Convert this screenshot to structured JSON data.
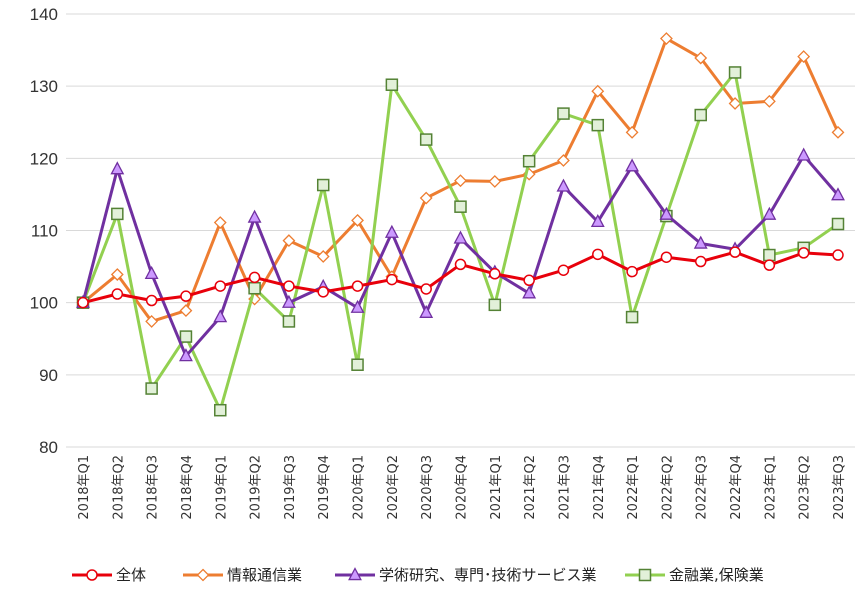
{
  "chart_data": {
    "type": "line",
    "title": "",
    "xlabel": "",
    "ylabel": "",
    "ylim": [
      80,
      140
    ],
    "yticks": [
      80,
      90,
      100,
      110,
      120,
      130,
      140
    ],
    "grid": true,
    "legend_position": "bottom",
    "categories": [
      "2018年Q1",
      "2018年Q2",
      "2018年Q3",
      "2018年Q4",
      "2019年Q1",
      "2019年Q2",
      "2019年Q3",
      "2019年Q4",
      "2020年Q1",
      "2020年Q2",
      "2020年Q3",
      "2020年Q4",
      "2021年Q1",
      "2021年Q2",
      "2021年Q3",
      "2021年Q4",
      "2022年Q1",
      "2022年Q2",
      "2022年Q3",
      "2022年Q4",
      "2023年Q1",
      "2023年Q2",
      "2023年Q3"
    ],
    "series": [
      {
        "name": "全体",
        "color": "#e8000b",
        "marker": "circle",
        "values": [
          100.0,
          101.2,
          100.3,
          100.9,
          102.3,
          103.5,
          102.3,
          101.5,
          102.3,
          103.2,
          101.9,
          105.3,
          104.0,
          103.1,
          104.5,
          106.7,
          104.3,
          106.3,
          105.7,
          107.0,
          105.2,
          106.9,
          106.6
        ]
      },
      {
        "name": "情報通信業",
        "color": "#ed7d31",
        "marker": "diamond",
        "values": [
          100.0,
          103.9,
          97.4,
          98.9,
          111.1,
          100.5,
          108.6,
          106.4,
          111.4,
          103.6,
          114.5,
          116.9,
          116.8,
          117.8,
          119.7,
          129.3,
          123.6,
          136.6,
          133.9,
          127.6,
          127.9,
          134.1,
          123.6
        ]
      },
      {
        "name": "学術研究、専門･技術サービス業",
        "color": "#7030a0",
        "marker": "triangle",
        "values": [
          100.0,
          118.5,
          104.0,
          92.6,
          98.0,
          111.8,
          100.0,
          102.2,
          99.3,
          109.7,
          98.6,
          108.9,
          104.2,
          101.3,
          116.1,
          111.2,
          118.9,
          112.2,
          108.2,
          107.4,
          112.2,
          120.4,
          114.9
        ]
      },
      {
        "name": "金融業,保険業",
        "color": "#92d050",
        "marker": "square",
        "values": [
          100.0,
          112.3,
          88.1,
          95.3,
          85.1,
          102.0,
          97.4,
          116.3,
          91.4,
          130.2,
          122.6,
          113.3,
          99.7,
          119.6,
          126.2,
          124.6,
          98.0,
          112.0,
          126.0,
          131.9,
          106.6,
          107.6,
          110.9
        ]
      }
    ]
  }
}
